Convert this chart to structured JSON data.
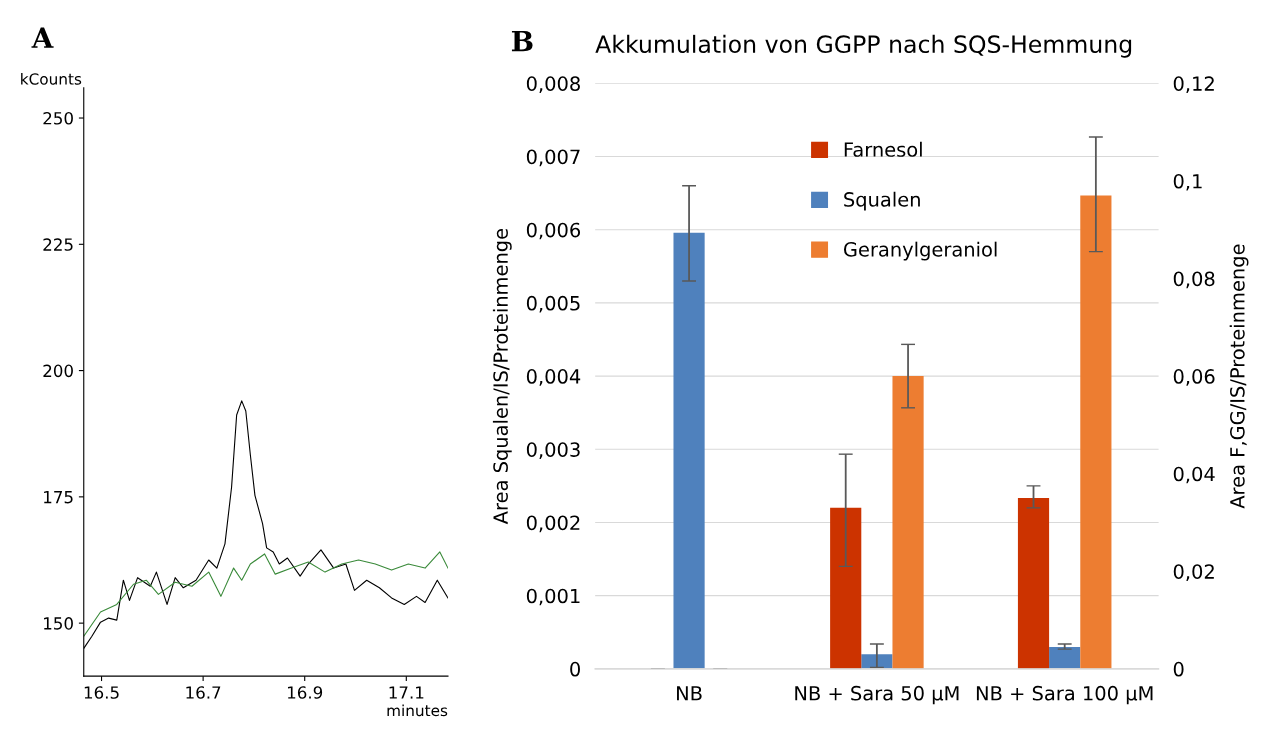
{
  "chart_data": [
    {
      "type": "line",
      "title": "A",
      "xlabel": "minutes",
      "ylabel": "kCounts",
      "xlim": [
        16.465,
        17.182
      ],
      "ylim": [
        139.5,
        256
      ],
      "xticks": [
        16.5,
        16.7,
        16.9,
        17.1
      ],
      "yticks": [
        150,
        175,
        200,
        225,
        250
      ],
      "grid": false,
      "series": [
        {
          "color": "#000000",
          "x": [
            16.465,
            16.481,
            16.498,
            16.514,
            16.53,
            16.543,
            16.555,
            16.571,
            16.596,
            16.608,
            16.629,
            16.645,
            16.661,
            16.686,
            16.711,
            16.727,
            16.743,
            16.756,
            16.766,
            16.776,
            16.784,
            16.793,
            16.802,
            16.817,
            16.825,
            16.838,
            16.85,
            16.866,
            16.891,
            16.907,
            16.932,
            16.957,
            16.981,
            16.998,
            17.022,
            17.047,
            17.071,
            17.096,
            17.12,
            17.137,
            17.161,
            17.182
          ],
          "values": [
            145,
            147.4,
            150.2,
            151,
            150.6,
            158.5,
            154.5,
            159,
            157.3,
            160.1,
            153.7,
            159,
            157,
            158.5,
            162.5,
            160.9,
            165.7,
            176.9,
            191.2,
            194,
            192,
            183.3,
            175.3,
            169.7,
            164.9,
            164.1,
            161.7,
            162.9,
            159.3,
            161.7,
            164.5,
            160.9,
            161.7,
            156.5,
            158.5,
            157,
            155,
            153.7,
            155.3,
            154.1,
            158.5,
            155
          ]
        },
        {
          "color": "#3a8a3a",
          "x": [
            16.465,
            16.498,
            16.53,
            16.563,
            16.588,
            16.612,
            16.645,
            16.678,
            16.711,
            16.735,
            16.76,
            16.776,
            16.793,
            16.821,
            16.842,
            16.874,
            16.907,
            16.94,
            16.973,
            17.006,
            17.039,
            17.071,
            17.104,
            17.137,
            17.166,
            17.182
          ],
          "values": [
            147.4,
            152.2,
            153.7,
            157.7,
            158.5,
            155.7,
            158.1,
            157.3,
            160.1,
            155.3,
            160.9,
            158.5,
            161.7,
            163.7,
            159.7,
            160.9,
            162.1,
            160.1,
            161.7,
            162.5,
            161.7,
            160.5,
            161.7,
            160.9,
            164.1,
            160.9
          ]
        }
      ]
    },
    {
      "type": "bar",
      "title": "Akkumulation von GGPP nach SQS-Hemmung",
      "annotations": [
        "B"
      ],
      "categories": [
        "NB",
        "NB + Sara 50 µM",
        "NB + Sara 100 µM"
      ],
      "ylabel": "Area Squalen/IS/Proteinmenge",
      "y2label": "Area F,GG/IS/Proteinmenge",
      "ylim": [
        0,
        0.008
      ],
      "yticks": [
        0,
        {
          "value": 0.001,
          "label": "0,001"
        },
        {
          "value": 0.002,
          "label": "0,002"
        },
        {
          "value": 0.003,
          "label": "0,003"
        },
        {
          "value": 0.004,
          "label": "0,004"
        },
        {
          "value": 0.005,
          "label": "0,005"
        },
        {
          "value": 0.006,
          "label": "0,006"
        },
        {
          "value": 0.007,
          "label": "0,007"
        },
        {
          "value": 0.008,
          "label": "0,008"
        }
      ],
      "y2lim": [
        0,
        0.12
      ],
      "y2ticks": [
        0,
        {
          "value": 0.02,
          "label": "0,02"
        },
        {
          "value": 0.04,
          "label": "0,04"
        },
        {
          "value": 0.06,
          "label": "0,06"
        },
        {
          "value": 0.08,
          "label": "0,08"
        },
        {
          "value": 0.1,
          "label": "0,1"
        },
        {
          "value": 0.12,
          "label": "0,12"
        }
      ],
      "grid": "y",
      "legend": "top",
      "series": [
        {
          "name": "Farnesol",
          "color": "#cc3300",
          "axis": "y2",
          "values": [
            0,
            0.033,
            0.035
          ],
          "errors": [
            null,
            [
              0.021,
              0.044
            ],
            [
              0.033,
              0.0375
            ]
          ]
        },
        {
          "name": "Squalen",
          "color": "#4f81bd",
          "values": [
            0.00596,
            0.0002,
            0.0003
          ],
          "errors": [
            [
              0.0053,
              0.0066
            ],
            [
              2e-05,
              0.00034
            ],
            [
              0.00027,
              0.00034
            ]
          ]
        },
        {
          "name": "Geranylgeraniol",
          "color": "#ed7d31",
          "axis": "y2",
          "values": [
            0,
            0.06,
            0.097
          ],
          "errors": [
            null,
            [
              0.0535,
              0.0665
            ],
            [
              0.0855,
              0.109
            ]
          ]
        }
      ]
    }
  ]
}
